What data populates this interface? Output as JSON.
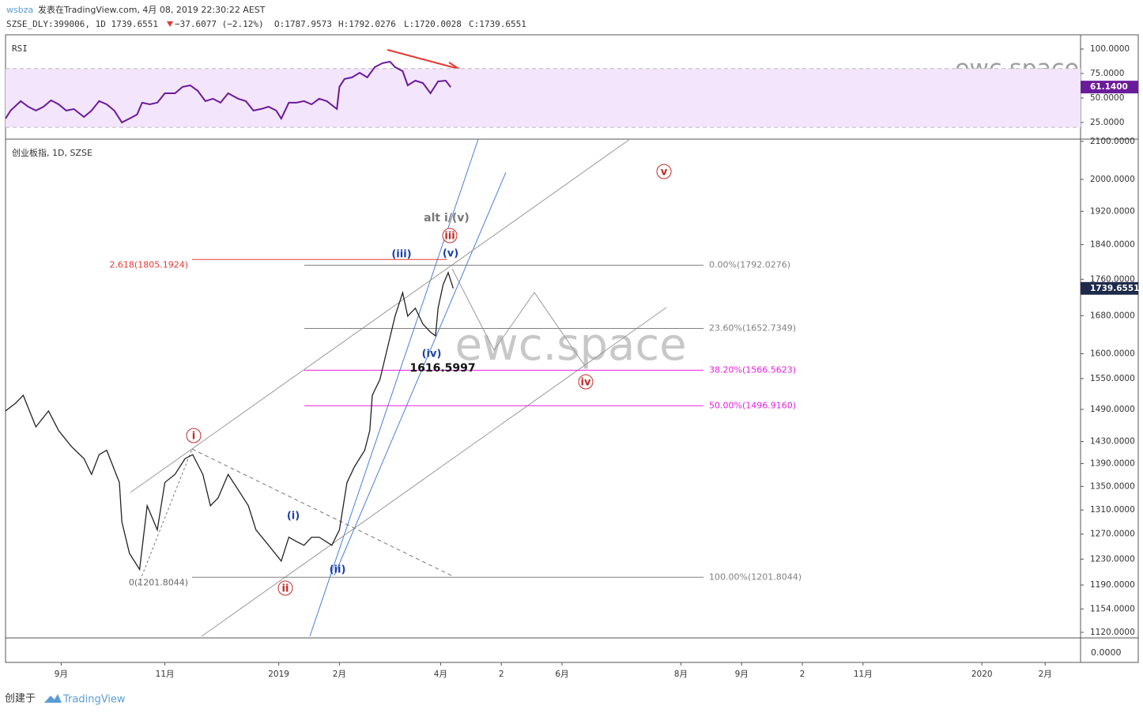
{
  "header": {
    "user": "wsbza",
    "published": "发表在TradingView.com, 4月 08, 2019 22:30:22 AEST",
    "symbol": "SZSE_DLY:399006, 1D 1739.6551",
    "change": "−37.6077 (−2.12%)",
    "open": "O:1787.9573",
    "high": "H:1792.0276",
    "low": "L:1720.0028",
    "close": "C:1739.6551"
  },
  "footer": {
    "created": "创建于",
    "brand": "TradingView"
  },
  "bottom_pane_label": "0.0000",
  "watermarks": [
    "ewc.space",
    "ewc.space"
  ],
  "chart_data": [
    {
      "type": "line",
      "title": "RSI",
      "color": "#6a1b9a",
      "x": [
        0,
        2,
        6,
        9,
        12,
        15,
        18,
        21,
        24,
        27,
        31,
        34,
        37,
        40,
        43,
        46,
        49,
        52,
        54,
        57,
        60,
        63,
        67,
        70,
        73,
        76,
        79,
        82,
        85,
        88,
        92,
        95,
        98,
        101,
        104,
        107,
        109,
        112,
        115,
        118,
        121,
        124,
        127,
        131,
        132,
        134,
        137,
        140,
        143,
        146,
        149,
        152,
        154,
        157,
        159,
        162,
        165,
        168,
        171,
        174,
        176
      ],
      "values": [
        29.0,
        37.1,
        46.8,
        41.1,
        37.1,
        41.1,
        47.6,
        43.5,
        37.1,
        38.7,
        30.6,
        37.1,
        46.8,
        43.5,
        37.1,
        25.0,
        29.0,
        33.1,
        45.2,
        43.5,
        45.2,
        54.8,
        54.8,
        61.3,
        62.9,
        57.3,
        46.8,
        49.2,
        45.2,
        54.8,
        49.2,
        46.8,
        37.1,
        38.7,
        41.1,
        37.1,
        29.0,
        45.2,
        45.2,
        46.8,
        43.5,
        49.2,
        46.8,
        38.7,
        61.3,
        69.4,
        71.0,
        75.8,
        71.0,
        81.5,
        85.5,
        87.1,
        81.5,
        77.4,
        62.9,
        67.7,
        65.3,
        54.8,
        66.9,
        67.7,
        61.1
      ],
      "ylim": [
        8,
        114.5
      ],
      "xlim": [
        0,
        425
      ],
      "yticks": [
        {
          "value": 100,
          "label": "100.0000"
        },
        {
          "value": 75,
          "label": "75.0000"
        },
        {
          "value": 50,
          "label": "50.0000"
        },
        {
          "value": 25,
          "label": "25.0000"
        }
      ],
      "band": [
        20,
        80
      ],
      "band_color": "#f3e5fb",
      "last_value": {
        "value": 61.14,
        "label": "61.1400"
      }
    },
    {
      "type": "line",
      "title": "创业板指, 1D, SZSE",
      "color": "#222222",
      "log_scale": true,
      "x": [
        0,
        4,
        7,
        12,
        17,
        21,
        26,
        31,
        34,
        37,
        40,
        45,
        46,
        49,
        53,
        56,
        60,
        63,
        67,
        71,
        74,
        78,
        81,
        84,
        88,
        92,
        96,
        99,
        104,
        109,
        112,
        115,
        118,
        121,
        124,
        129,
        132,
        135,
        138,
        142,
        144,
        145,
        148,
        151,
        154,
        157,
        159,
        162,
        165,
        168,
        170,
        171,
        173,
        175,
        177
      ],
      "values": [
        1487,
        1502,
        1517,
        1457,
        1487,
        1450,
        1421,
        1399,
        1371,
        1406,
        1414,
        1357,
        1290,
        1239,
        1214,
        1317,
        1277,
        1357,
        1371,
        1399,
        1406,
        1371,
        1317,
        1330,
        1371,
        1344,
        1317,
        1277,
        1252,
        1227,
        1265,
        1258,
        1252,
        1265,
        1265,
        1252,
        1277,
        1357,
        1385,
        1414,
        1450,
        1517,
        1548,
        1612,
        1679,
        1730,
        1679,
        1696,
        1662,
        1645,
        1637,
        1696,
        1748,
        1775,
        1739.6551
      ],
      "ylim": [
        1112,
        2106
      ],
      "xlim": [
        0,
        425
      ],
      "yticks": [
        {
          "value": 2100,
          "label": "2100.0000"
        },
        {
          "value": 2000,
          "label": "2000.0000"
        },
        {
          "value": 1920,
          "label": "1920.0000"
        },
        {
          "value": 1840,
          "label": "1840.0000"
        },
        {
          "value": 1760,
          "label": "1760.0000"
        },
        {
          "value": 1680,
          "label": "1680.0000"
        },
        {
          "value": 1600,
          "label": "1600.0000"
        },
        {
          "value": 1550,
          "label": "1550.0000"
        },
        {
          "value": 1490,
          "label": "1490.0000"
        },
        {
          "value": 1430,
          "label": "1430.0000"
        },
        {
          "value": 1390,
          "label": "1390.0000"
        },
        {
          "value": 1350,
          "label": "1350.0000"
        },
        {
          "value": 1310,
          "label": "1310.0000"
        },
        {
          "value": 1270,
          "label": "1270.0000"
        },
        {
          "value": 1230,
          "label": "1230.0000"
        },
        {
          "value": 1190,
          "label": "1190.0000"
        },
        {
          "value": 1154,
          "label": "1154.0000"
        },
        {
          "value": 1120,
          "label": "1120.0000"
        }
      ],
      "xticks": [
        {
          "value": 22,
          "label": "9月"
        },
        {
          "value": 63,
          "label": "11月"
        },
        {
          "value": 108,
          "label": "2019"
        },
        {
          "value": 132,
          "label": "2月"
        },
        {
          "value": 172,
          "label": "4月"
        },
        {
          "value": 196,
          "label": "2"
        },
        {
          "value": 220,
          "label": "6月"
        },
        {
          "value": 267,
          "label": "8月"
        },
        {
          "value": 291,
          "label": "9月"
        },
        {
          "value": 315,
          "label": "2"
        },
        {
          "value": 339,
          "label": "11月"
        },
        {
          "value": 386,
          "label": "2020"
        },
        {
          "value": 411,
          "label": "2月"
        }
      ],
      "fib_levels": [
        {
          "value": 1792.0276,
          "label": "0.00%(1792.0276)",
          "color": "#808080"
        },
        {
          "value": 1652.7349,
          "label": "23.60%(1652.7349)",
          "color": "#808080"
        },
        {
          "value": 1566.5623,
          "label": "38.20%(1566.5623)",
          "color": "#e91ee0"
        },
        {
          "value": 1496.916,
          "label": "50.00%(1496.9160)",
          "color": "#e91ee0"
        },
        {
          "value": 1201.8044,
          "label": "100.00%(1201.8044)",
          "color": "#808080"
        }
      ],
      "extension": {
        "value": 1805.1924,
        "label": "2.618(1805.1924)",
        "color": "#e53935"
      },
      "origin_label": {
        "value": 1201.8044,
        "label": "0(1201.8044)"
      },
      "annotations": [
        "i",
        "ii",
        "iii",
        "iv",
        "v",
        "(i)",
        "(ii)",
        "(iii)",
        "(iv)",
        "(v)",
        "alt i/(v)",
        "1616.5997"
      ]
    }
  ]
}
